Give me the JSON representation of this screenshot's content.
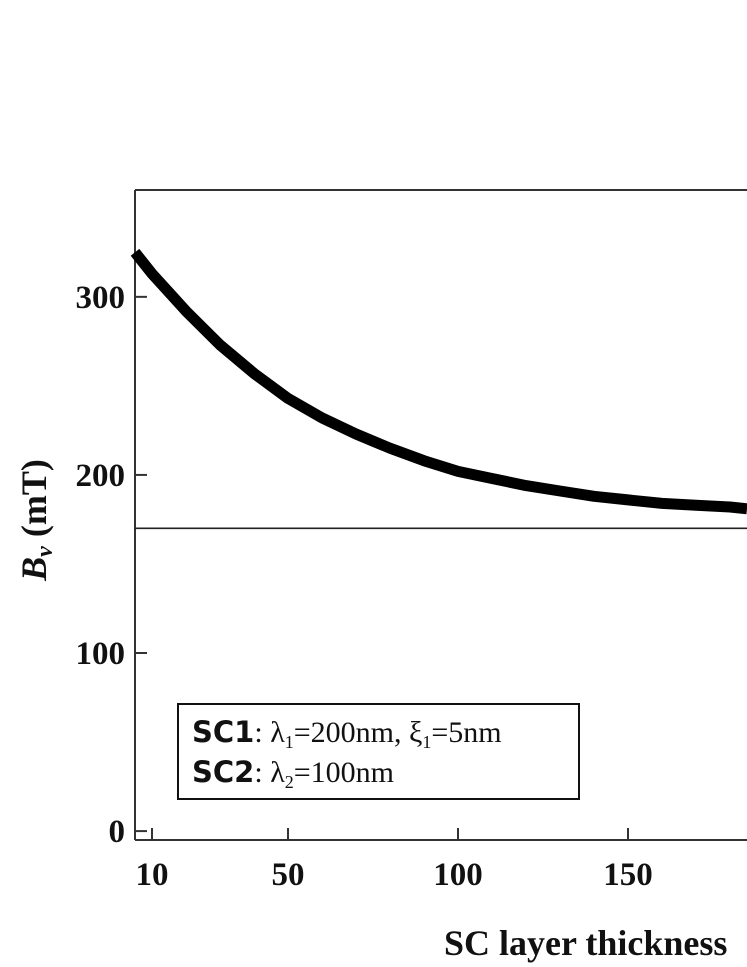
{
  "chart_data": {
    "type": "line",
    "xlabel": "SC layer thickness",
    "ylabel_main": "B",
    "ylabel_sub": "v",
    "ylabel_unit": "(mT)",
    "xlim": [
      5,
      185
    ],
    "ylim": [
      -5,
      360
    ],
    "x_ticks": [
      10,
      50,
      100,
      150
    ],
    "y_ticks": [
      0,
      100,
      200,
      300
    ],
    "reference_line": {
      "y": 170
    },
    "series": [
      {
        "x": [
          5,
          10,
          20,
          30,
          40,
          50,
          60,
          70,
          80,
          90,
          100,
          110,
          120,
          130,
          140,
          150,
          160,
          170,
          180,
          185
        ],
        "y": [
          325,
          313,
          292,
          273,
          257,
          243,
          232,
          223,
          215,
          208,
          202,
          198,
          194,
          191,
          188,
          186,
          184,
          183,
          182,
          181
        ]
      }
    ],
    "legend": {
      "line1": {
        "key": "SC1",
        "text": ": λ1=200nm,  ξ1=5nm"
      },
      "line2": {
        "key": "SC2",
        "text": ": λ2=100nm"
      }
    },
    "grid": false,
    "colors": {
      "curve": "#000000",
      "axis": "#333333"
    }
  }
}
